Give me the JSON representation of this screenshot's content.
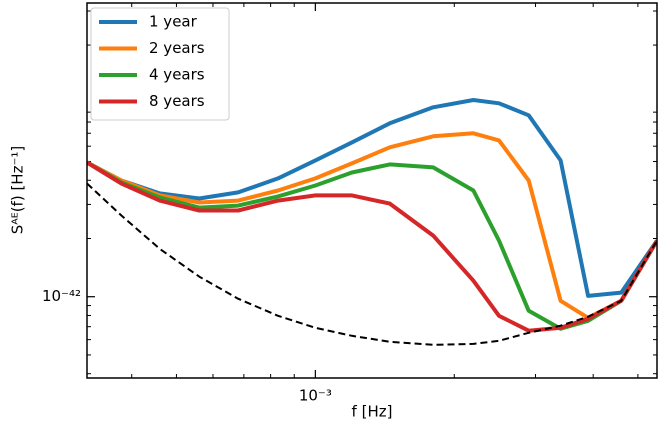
{
  "chart_data": {
    "type": "line",
    "xlabel": "f [Hz]",
    "ylabel": "Sᴬᴱ(f) [Hz⁻¹]",
    "xscale": "log",
    "yscale": "log",
    "xlim": [
      0.00032,
      0.0055
    ],
    "ylim": [
      3.8e-43,
      3.3e-41
    ],
    "xticks": [
      {
        "value": 0.001,
        "label": "10⁻³"
      }
    ],
    "yticks": [
      {
        "value": 1e-42,
        "label": "10⁻⁴²"
      }
    ],
    "legend": "upper left",
    "x": [
      0.00032,
      0.00038,
      0.00046,
      0.00056,
      0.00068,
      0.00083,
      0.001,
      0.0012,
      0.00145,
      0.0018,
      0.0022,
      0.0025,
      0.0029,
      0.0034,
      0.0039,
      0.0046,
      0.0055
    ],
    "series": [
      {
        "name": "1 year",
        "color": "#1f77b4",
        "values": [
          4.94e-42,
          3.99e-42,
          3.42e-42,
          3.22e-42,
          3.46e-42,
          4.09e-42,
          5.07e-42,
          6.28e-42,
          7.88e-42,
          9.53e-42,
          1.04e-41,
          1e-41,
          8.67e-42,
          5.07e-42,
          1.01e-42,
          1.05e-42,
          1.95e-42
        ]
      },
      {
        "name": "2 years",
        "color": "#ff7f0e",
        "values": [
          4.94e-42,
          3.99e-42,
          3.34e-42,
          3.07e-42,
          3.14e-42,
          3.54e-42,
          4.09e-42,
          4.89e-42,
          5.92e-42,
          6.75e-42,
          7e-42,
          6.43e-42,
          3.99e-42,
          9.53e-43,
          7.78e-43,
          9.53e-43,
          1.95e-42
        ]
      },
      {
        "name": "4 years",
        "color": "#2ca02c",
        "values": [
          4.94e-42,
          3.9e-42,
          3.26e-42,
          2.89e-42,
          2.96e-42,
          3.3e-42,
          3.76e-42,
          4.39e-42,
          4.83e-42,
          4.66e-42,
          3.54e-42,
          1.95e-42,
          8.46e-43,
          6.83e-43,
          7.51e-43,
          9.53e-43,
          1.95e-42
        ]
      },
      {
        "name": "8 years",
        "color": "#d62728",
        "values": [
          4.94e-42,
          3.85e-42,
          3.14e-42,
          2.79e-42,
          2.79e-42,
          3.14e-42,
          3.34e-42,
          3.34e-42,
          3.03e-42,
          2.07e-42,
          1.21e-42,
          7.97e-43,
          6.67e-43,
          6.91e-43,
          7.69e-43,
          9.53e-43,
          1.95e-42
        ]
      }
    ],
    "reference_curve": {
      "color": "#000000",
      "style": "dashed",
      "values": [
        3.85e-42,
        2.63e-42,
        1.77e-42,
        1.27e-42,
        9.77e-43,
        7.97e-43,
        6.91e-43,
        6.28e-43,
        5.85e-43,
        5.64e-43,
        5.7e-43,
        5.92e-43,
        6.51e-43,
        7.08e-43,
        7.88e-43,
        9.53e-43,
        1.95e-42
      ]
    }
  }
}
